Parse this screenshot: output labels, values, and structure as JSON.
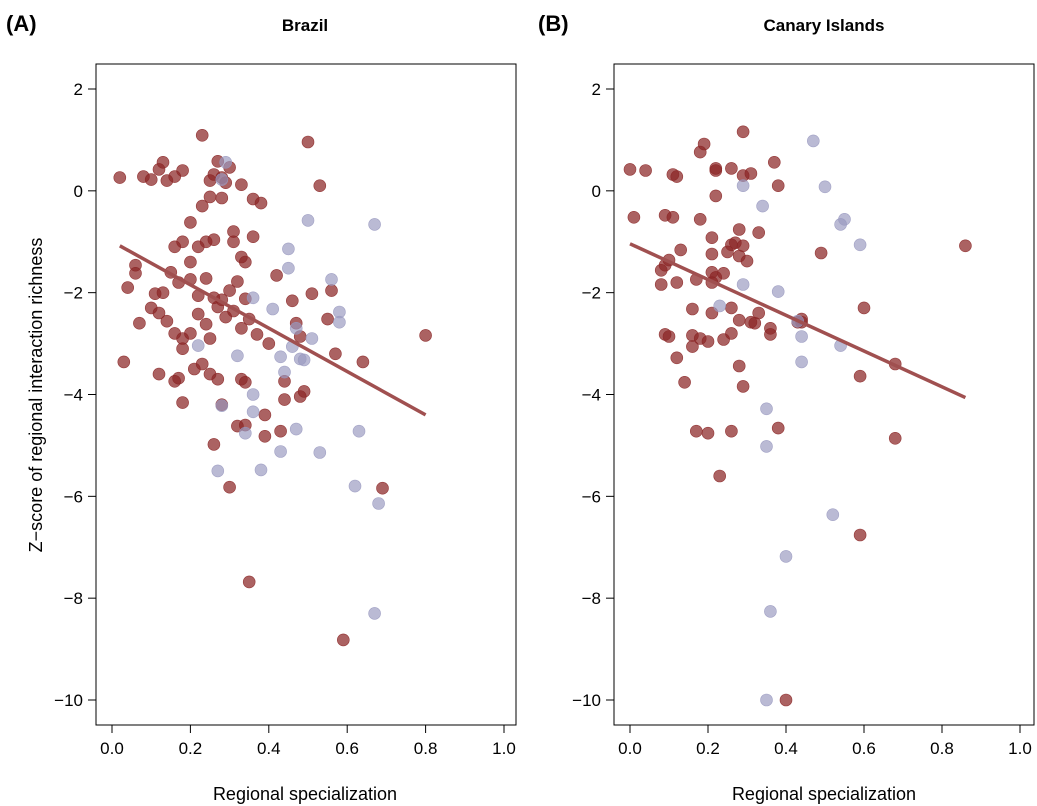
{
  "chart_data": [
    {
      "type": "scatter",
      "panel_label": "(A)",
      "title": "Brazil",
      "xlabel": "Regional specialization",
      "ylabel": "Z−score of regional interaction richness",
      "xlim": [
        0.0,
        1.0
      ],
      "ylim": [
        -10,
        2
      ],
      "xticks": [
        0.0,
        0.2,
        0.4,
        0.6,
        0.8,
        1.0
      ],
      "xtick_labels": [
        "0.0",
        "0.2",
        "0.4",
        "0.6",
        "0.8",
        "1.0"
      ],
      "yticks": [
        -10,
        -8,
        -6,
        -4,
        -2,
        0,
        2
      ],
      "ytick_labels": [
        "−10",
        "−8",
        "−6",
        "−4",
        "−2",
        "0",
        "2"
      ],
      "grid": false,
      "legend": "none",
      "series": [
        {
          "color": "#8b2626",
          "points": [
            [
              0.02,
              0.26
            ],
            [
              0.08,
              0.28
            ],
            [
              0.1,
              0.22
            ],
            [
              0.12,
              0.42
            ],
            [
              0.13,
              0.56
            ],
            [
              0.14,
              0.2
            ],
            [
              0.16,
              0.28
            ],
            [
              0.18,
              0.4
            ],
            [
              0.23,
              1.09
            ],
            [
              0.26,
              0.32
            ],
            [
              0.27,
              0.58
            ],
            [
              0.29,
              0.16
            ],
            [
              0.3,
              0.46
            ],
            [
              0.33,
              0.12
            ],
            [
              0.5,
              0.96
            ],
            [
              0.53,
              0.1
            ],
            [
              0.25,
              0.2
            ],
            [
              0.28,
              0.26
            ],
            [
              0.23,
              -0.3
            ],
            [
              0.25,
              -0.12
            ],
            [
              0.28,
              -0.14
            ],
            [
              0.36,
              -0.16
            ],
            [
              0.38,
              -0.24
            ],
            [
              0.2,
              -0.62
            ],
            [
              0.16,
              -1.1
            ],
            [
              0.18,
              -1.0
            ],
            [
              0.2,
              -1.4
            ],
            [
              0.22,
              -1.1
            ],
            [
              0.24,
              -1.0
            ],
            [
              0.26,
              -0.96
            ],
            [
              0.31,
              -0.8
            ],
            [
              0.31,
              -1.0
            ],
            [
              0.33,
              -1.3
            ],
            [
              0.34,
              -1.4
            ],
            [
              0.36,
              -0.9
            ],
            [
              0.06,
              -1.46
            ],
            [
              0.06,
              -1.62
            ],
            [
              0.04,
              -1.9
            ],
            [
              0.11,
              -2.02
            ],
            [
              0.13,
              -2.0
            ],
            [
              0.15,
              -1.6
            ],
            [
              0.17,
              -1.8
            ],
            [
              0.2,
              -1.74
            ],
            [
              0.22,
              -2.06
            ],
            [
              0.24,
              -1.72
            ],
            [
              0.26,
              -2.1
            ],
            [
              0.28,
              -2.14
            ],
            [
              0.3,
              -1.96
            ],
            [
              0.32,
              -1.78
            ],
            [
              0.34,
              -2.12
            ],
            [
              0.42,
              -1.66
            ],
            [
              0.46,
              -2.16
            ],
            [
              0.51,
              -2.02
            ],
            [
              0.56,
              -1.96
            ],
            [
              0.07,
              -2.6
            ],
            [
              0.1,
              -2.3
            ],
            [
              0.12,
              -2.4
            ],
            [
              0.14,
              -2.56
            ],
            [
              0.16,
              -2.8
            ],
            [
              0.18,
              -2.9
            ],
            [
              0.2,
              -2.8
            ],
            [
              0.22,
              -2.42
            ],
            [
              0.24,
              -2.62
            ],
            [
              0.25,
              -2.9
            ],
            [
              0.27,
              -2.28
            ],
            [
              0.29,
              -2.48
            ],
            [
              0.31,
              -2.36
            ],
            [
              0.33,
              -2.7
            ],
            [
              0.35,
              -2.52
            ],
            [
              0.37,
              -2.82
            ],
            [
              0.4,
              -3.0
            ],
            [
              0.47,
              -2.6
            ],
            [
              0.48,
              -2.86
            ],
            [
              0.55,
              -2.52
            ],
            [
              0.57,
              -3.2
            ],
            [
              0.64,
              -3.36
            ],
            [
              0.8,
              -2.84
            ],
            [
              0.03,
              -3.36
            ],
            [
              0.12,
              -3.6
            ],
            [
              0.16,
              -3.74
            ],
            [
              0.17,
              -3.68
            ],
            [
              0.18,
              -3.1
            ],
            [
              0.21,
              -3.5
            ],
            [
              0.23,
              -3.4
            ],
            [
              0.25,
              -3.6
            ],
            [
              0.27,
              -3.7
            ],
            [
              0.33,
              -3.7
            ],
            [
              0.34,
              -3.76
            ],
            [
              0.44,
              -3.74
            ],
            [
              0.48,
              -4.04
            ],
            [
              0.49,
              -3.94
            ],
            [
              0.18,
              -4.16
            ],
            [
              0.28,
              -4.2
            ],
            [
              0.32,
              -4.62
            ],
            [
              0.34,
              -4.6
            ],
            [
              0.39,
              -4.4
            ],
            [
              0.39,
              -4.82
            ],
            [
              0.43,
              -4.72
            ],
            [
              0.44,
              -4.1
            ],
            [
              0.26,
              -4.98
            ],
            [
              0.3,
              -5.82
            ],
            [
              0.69,
              -5.84
            ],
            [
              0.35,
              -7.68
            ],
            [
              0.59,
              -8.82
            ]
          ]
        },
        {
          "color": "#9999c0",
          "points": [
            [
              0.28,
              0.22
            ],
            [
              0.29,
              0.56
            ],
            [
              0.5,
              -0.58
            ],
            [
              0.67,
              -0.66
            ],
            [
              0.45,
              -1.14
            ],
            [
              0.45,
              -1.52
            ],
            [
              0.56,
              -1.74
            ],
            [
              0.36,
              -2.1
            ],
            [
              0.41,
              -2.32
            ],
            [
              0.58,
              -2.38
            ],
            [
              0.58,
              -2.58
            ],
            [
              0.47,
              -2.7
            ],
            [
              0.22,
              -3.04
            ],
            [
              0.32,
              -3.24
            ],
            [
              0.43,
              -3.26
            ],
            [
              0.48,
              -3.3
            ],
            [
              0.49,
              -3.32
            ],
            [
              0.51,
              -2.9
            ],
            [
              0.46,
              -3.06
            ],
            [
              0.44,
              -3.56
            ],
            [
              0.36,
              -4.0
            ],
            [
              0.28,
              -4.22
            ],
            [
              0.36,
              -4.34
            ],
            [
              0.34,
              -4.76
            ],
            [
              0.47,
              -4.68
            ],
            [
              0.43,
              -5.12
            ],
            [
              0.53,
              -5.14
            ],
            [
              0.63,
              -4.72
            ],
            [
              0.27,
              -5.5
            ],
            [
              0.38,
              -5.48
            ],
            [
              0.62,
              -5.8
            ],
            [
              0.68,
              -6.14
            ],
            [
              0.67,
              -8.3
            ]
          ]
        }
      ],
      "fit_line": {
        "color": "#a05050",
        "x": [
          0.02,
          0.8
        ],
        "y": [
          -1.08,
          -4.4
        ]
      }
    },
    {
      "type": "scatter",
      "panel_label": "(B)",
      "title": "Canary Islands",
      "xlabel": "Regional specialization",
      "ylabel": "",
      "xlim": [
        0.0,
        1.0
      ],
      "ylim": [
        -10,
        2
      ],
      "xticks": [
        0.0,
        0.2,
        0.4,
        0.6,
        0.8,
        1.0
      ],
      "xtick_labels": [
        "0.0",
        "0.2",
        "0.4",
        "0.6",
        "0.8",
        "1.0"
      ],
      "yticks": [
        -10,
        -8,
        -6,
        -4,
        -2,
        0,
        2
      ],
      "ytick_labels": [
        "−10",
        "−8",
        "−6",
        "−4",
        "−2",
        "0",
        "2"
      ],
      "grid": false,
      "legend": "none",
      "series": [
        {
          "color": "#8b2626",
          "points": [
            [
              0.0,
              0.42
            ],
            [
              0.04,
              0.4
            ],
            [
              0.11,
              0.32
            ],
            [
              0.12,
              0.28
            ],
            [
              0.18,
              0.76
            ],
            [
              0.19,
              0.92
            ],
            [
              0.22,
              0.4
            ],
            [
              0.22,
              0.44
            ],
            [
              0.26,
              0.44
            ],
            [
              0.29,
              1.16
            ],
            [
              0.29,
              0.3
            ],
            [
              0.31,
              0.34
            ],
            [
              0.37,
              0.56
            ],
            [
              0.38,
              0.1
            ],
            [
              0.22,
              -0.1
            ],
            [
              0.01,
              -0.52
            ],
            [
              0.09,
              -0.48
            ],
            [
              0.11,
              -0.52
            ],
            [
              0.18,
              -0.56
            ],
            [
              0.28,
              -0.76
            ],
            [
              0.33,
              -0.82
            ],
            [
              0.21,
              -0.92
            ],
            [
              0.26,
              -1.06
            ],
            [
              0.27,
              -1.02
            ],
            [
              0.29,
              -1.08
            ],
            [
              0.13,
              -1.16
            ],
            [
              0.1,
              -1.36
            ],
            [
              0.09,
              -1.46
            ],
            [
              0.08,
              -1.56
            ],
            [
              0.21,
              -1.24
            ],
            [
              0.25,
              -1.2
            ],
            [
              0.28,
              -1.28
            ],
            [
              0.3,
              -1.38
            ],
            [
              0.49,
              -1.22
            ],
            [
              0.86,
              -1.08
            ],
            [
              0.08,
              -1.84
            ],
            [
              0.12,
              -1.8
            ],
            [
              0.17,
              -1.74
            ],
            [
              0.21,
              -1.6
            ],
            [
              0.22,
              -1.7
            ],
            [
              0.24,
              -1.62
            ],
            [
              0.21,
              -1.8
            ],
            [
              0.6,
              -2.3
            ],
            [
              0.16,
              -2.32
            ],
            [
              0.21,
              -2.4
            ],
            [
              0.26,
              -2.3
            ],
            [
              0.28,
              -2.54
            ],
            [
              0.31,
              -2.58
            ],
            [
              0.32,
              -2.6
            ],
            [
              0.33,
              -2.4
            ],
            [
              0.36,
              -2.7
            ],
            [
              0.43,
              -2.58
            ],
            [
              0.44,
              -2.52
            ],
            [
              0.09,
              -2.82
            ],
            [
              0.1,
              -2.86
            ],
            [
              0.16,
              -2.84
            ],
            [
              0.18,
              -2.9
            ],
            [
              0.24,
              -2.92
            ],
            [
              0.26,
              -2.8
            ],
            [
              0.36,
              -2.82
            ],
            [
              0.44,
              -2.58
            ],
            [
              0.68,
              -3.4
            ],
            [
              0.12,
              -3.28
            ],
            [
              0.16,
              -3.06
            ],
            [
              0.2,
              -2.96
            ],
            [
              0.28,
              -3.44
            ],
            [
              0.14,
              -3.76
            ],
            [
              0.29,
              -3.84
            ],
            [
              0.59,
              -3.64
            ],
            [
              0.17,
              -4.72
            ],
            [
              0.2,
              -4.76
            ],
            [
              0.26,
              -4.72
            ],
            [
              0.38,
              -4.66
            ],
            [
              0.68,
              -4.86
            ],
            [
              0.23,
              -5.6
            ],
            [
              0.59,
              -6.76
            ],
            [
              0.4,
              -10.0
            ]
          ]
        },
        {
          "color": "#9999c0",
          "points": [
            [
              0.47,
              0.98
            ],
            [
              0.5,
              0.08
            ],
            [
              0.29,
              0.1
            ],
            [
              0.34,
              -0.3
            ],
            [
              0.55,
              -0.56
            ],
            [
              0.54,
              -0.66
            ],
            [
              0.59,
              -1.06
            ],
            [
              0.29,
              -1.84
            ],
            [
              0.38,
              -1.98
            ],
            [
              0.23,
              -2.26
            ],
            [
              0.43,
              -2.56
            ],
            [
              0.44,
              -2.86
            ],
            [
              0.54,
              -3.04
            ],
            [
              0.44,
              -3.36
            ],
            [
              0.35,
              -4.28
            ],
            [
              0.35,
              -5.02
            ],
            [
              0.52,
              -6.36
            ],
            [
              0.4,
              -7.18
            ],
            [
              0.36,
              -8.26
            ],
            [
              0.35,
              -10.0
            ]
          ]
        }
      ],
      "fit_line": {
        "color": "#a05050",
        "x": [
          0.0,
          0.86
        ],
        "y": [
          -1.04,
          -4.06
        ]
      }
    }
  ]
}
